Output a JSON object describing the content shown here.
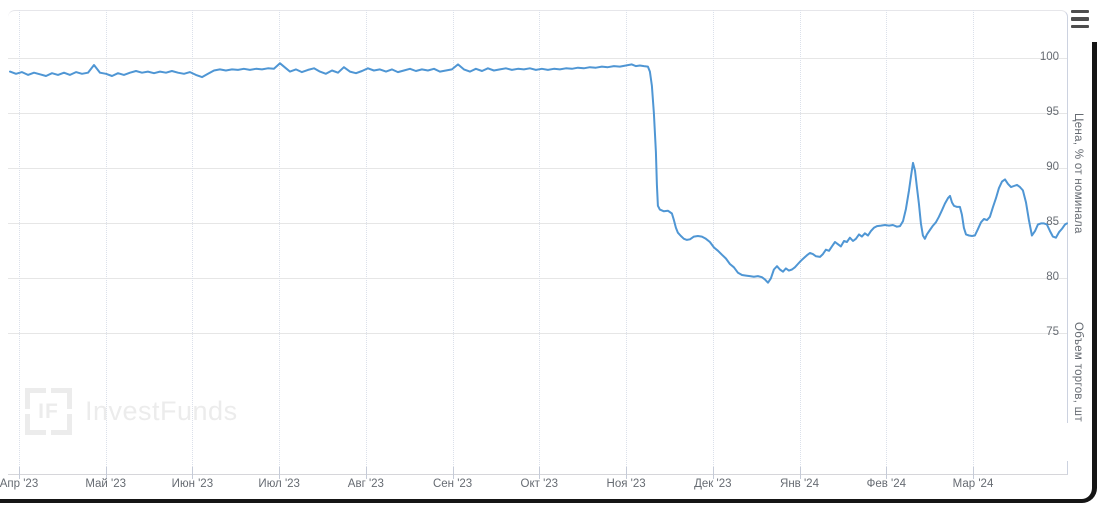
{
  "watermark": {
    "logo_text": "IF",
    "brand": "InvestFunds"
  },
  "colors": {
    "line": "#4f96d4",
    "grid": "#e6e6e6",
    "vgrid": "#dbe0ea",
    "axisline": "#c5cbd8",
    "text": "#666b72",
    "menu": "#4d4d4d",
    "watermark": "#ececec",
    "frame": "#151515"
  },
  "chart_data": {
    "type": "line",
    "title": "",
    "legend": "none",
    "grid": "horizontal solid, vertical dotted at month ticks",
    "x_axis": {
      "tick_labels": [
        "Апр '23",
        "Май '23",
        "Июн '23",
        "Июл '23",
        "Авг '23",
        "Сен '23",
        "Окт '23",
        "Ноя '23",
        "Дек '23",
        "Янв '24",
        "Фев '24",
        "Мар '24"
      ],
      "first_tick_frac": 0.0085,
      "tick_step_frac": 0.08205
    },
    "y_axis": {
      "title": "Цена, % от номинала",
      "side": "right",
      "ticks": [
        100,
        95,
        90,
        85,
        80,
        75
      ],
      "ylim": [
        62.3,
        104.4
      ]
    },
    "y2_axis": {
      "title": "Объем торгов, шт",
      "side": "right",
      "ticks": []
    },
    "series": [
      {
        "name": "Цена, % от номинала",
        "color": "#4f96d4",
        "points": [
          [
            0.0,
            98.8
          ],
          [
            0.0057,
            98.6
          ],
          [
            0.0114,
            98.75
          ],
          [
            0.017,
            98.5
          ],
          [
            0.0227,
            98.7
          ],
          [
            0.0284,
            98.55
          ],
          [
            0.0341,
            98.4
          ],
          [
            0.0397,
            98.65
          ],
          [
            0.0454,
            98.5
          ],
          [
            0.0511,
            98.7
          ],
          [
            0.0568,
            98.5
          ],
          [
            0.0624,
            98.75
          ],
          [
            0.0681,
            98.6
          ],
          [
            0.0738,
            98.7
          ],
          [
            0.0795,
            99.4
          ],
          [
            0.0851,
            98.7
          ],
          [
            0.0908,
            98.6
          ],
          [
            0.0965,
            98.4
          ],
          [
            0.1022,
            98.65
          ],
          [
            0.1078,
            98.5
          ],
          [
            0.1135,
            98.7
          ],
          [
            0.1192,
            98.85
          ],
          [
            0.1249,
            98.7
          ],
          [
            0.1305,
            98.8
          ],
          [
            0.1362,
            98.65
          ],
          [
            0.1419,
            98.8
          ],
          [
            0.1476,
            98.7
          ],
          [
            0.1532,
            98.85
          ],
          [
            0.1589,
            98.7
          ],
          [
            0.1646,
            98.6
          ],
          [
            0.1703,
            98.75
          ],
          [
            0.1759,
            98.5
          ],
          [
            0.1816,
            98.3
          ],
          [
            0.1873,
            98.6
          ],
          [
            0.193,
            98.9
          ],
          [
            0.1986,
            99.0
          ],
          [
            0.2043,
            98.9
          ],
          [
            0.21,
            99.0
          ],
          [
            0.2157,
            98.95
          ],
          [
            0.2213,
            99.05
          ],
          [
            0.227,
            98.95
          ],
          [
            0.2327,
            99.05
          ],
          [
            0.2384,
            99.0
          ],
          [
            0.244,
            99.1
          ],
          [
            0.2497,
            99.05
          ],
          [
            0.2554,
            99.55
          ],
          [
            0.2611,
            99.1
          ],
          [
            0.2649,
            98.8
          ],
          [
            0.2705,
            99.0
          ],
          [
            0.2762,
            98.75
          ],
          [
            0.2819,
            98.95
          ],
          [
            0.2876,
            99.1
          ],
          [
            0.2932,
            98.8
          ],
          [
            0.2989,
            98.6
          ],
          [
            0.3046,
            98.9
          ],
          [
            0.3103,
            98.7
          ],
          [
            0.3159,
            99.2
          ],
          [
            0.3216,
            98.8
          ],
          [
            0.3273,
            98.65
          ],
          [
            0.333,
            98.85
          ],
          [
            0.3386,
            99.1
          ],
          [
            0.3443,
            98.9
          ],
          [
            0.35,
            99.0
          ],
          [
            0.3557,
            98.8
          ],
          [
            0.3613,
            99.0
          ],
          [
            0.367,
            98.75
          ],
          [
            0.3727,
            98.9
          ],
          [
            0.3784,
            99.05
          ],
          [
            0.384,
            98.85
          ],
          [
            0.3897,
            99.0
          ],
          [
            0.3954,
            98.9
          ],
          [
            0.4011,
            99.05
          ],
          [
            0.4067,
            98.8
          ],
          [
            0.4124,
            98.9
          ],
          [
            0.4181,
            99.0
          ],
          [
            0.4238,
            99.45
          ],
          [
            0.4294,
            99.0
          ],
          [
            0.4351,
            98.8
          ],
          [
            0.4408,
            99.05
          ],
          [
            0.4465,
            98.85
          ],
          [
            0.4521,
            99.1
          ],
          [
            0.4578,
            98.9
          ],
          [
            0.4635,
            99.0
          ],
          [
            0.4692,
            99.1
          ],
          [
            0.4748,
            98.95
          ],
          [
            0.4805,
            99.05
          ],
          [
            0.4862,
            99.0
          ],
          [
            0.4919,
            99.1
          ],
          [
            0.4975,
            98.95
          ],
          [
            0.5032,
            99.05
          ],
          [
            0.5089,
            98.95
          ],
          [
            0.5146,
            99.05
          ],
          [
            0.5202,
            99.0
          ],
          [
            0.5259,
            99.1
          ],
          [
            0.5316,
            99.05
          ],
          [
            0.5373,
            99.15
          ],
          [
            0.5429,
            99.1
          ],
          [
            0.5486,
            99.2
          ],
          [
            0.5543,
            99.15
          ],
          [
            0.56,
            99.25
          ],
          [
            0.5656,
            99.2
          ],
          [
            0.5713,
            99.3
          ],
          [
            0.577,
            99.25
          ],
          [
            0.5827,
            99.35
          ],
          [
            0.5883,
            99.45
          ],
          [
            0.5921,
            99.3
          ],
          [
            0.5959,
            99.35
          ],
          [
            0.5997,
            99.3
          ],
          [
            0.6035,
            99.25
          ],
          [
            0.6054,
            98.8
          ],
          [
            0.6073,
            97.5
          ],
          [
            0.6092,
            95.0
          ],
          [
            0.6111,
            91.5
          ],
          [
            0.612,
            88.5
          ],
          [
            0.613,
            86.6
          ],
          [
            0.6149,
            86.25
          ],
          [
            0.6186,
            86.1
          ],
          [
            0.6224,
            86.15
          ],
          [
            0.6262,
            85.9
          ],
          [
            0.6281,
            85.3
          ],
          [
            0.63,
            84.6
          ],
          [
            0.6319,
            84.15
          ],
          [
            0.6347,
            83.85
          ],
          [
            0.6376,
            83.6
          ],
          [
            0.6404,
            83.5
          ],
          [
            0.6433,
            83.55
          ],
          [
            0.647,
            83.8
          ],
          [
            0.6508,
            83.85
          ],
          [
            0.6546,
            83.8
          ],
          [
            0.6584,
            83.6
          ],
          [
            0.6622,
            83.3
          ],
          [
            0.666,
            82.8
          ],
          [
            0.6698,
            82.5
          ],
          [
            0.6735,
            82.15
          ],
          [
            0.6773,
            81.8
          ],
          [
            0.6811,
            81.3
          ],
          [
            0.6849,
            81.0
          ],
          [
            0.6887,
            80.5
          ],
          [
            0.6925,
            80.3
          ],
          [
            0.6963,
            80.25
          ],
          [
            0.7,
            80.2
          ],
          [
            0.7038,
            80.15
          ],
          [
            0.7076,
            80.2
          ],
          [
            0.7114,
            80.1
          ],
          [
            0.7142,
            79.9
          ],
          [
            0.7171,
            79.6
          ],
          [
            0.7199,
            80.0
          ],
          [
            0.7227,
            80.8
          ],
          [
            0.7256,
            81.1
          ],
          [
            0.7284,
            80.8
          ],
          [
            0.7313,
            80.6
          ],
          [
            0.7341,
            80.9
          ],
          [
            0.7369,
            80.7
          ],
          [
            0.7398,
            80.8
          ],
          [
            0.7426,
            81.0
          ],
          [
            0.7454,
            81.3
          ],
          [
            0.7483,
            81.6
          ],
          [
            0.7511,
            81.85
          ],
          [
            0.754,
            82.1
          ],
          [
            0.7568,
            82.3
          ],
          [
            0.7596,
            82.2
          ],
          [
            0.7625,
            82.0
          ],
          [
            0.7663,
            81.95
          ],
          [
            0.7691,
            82.2
          ],
          [
            0.7719,
            82.6
          ],
          [
            0.7748,
            82.5
          ],
          [
            0.7776,
            82.9
          ],
          [
            0.7805,
            83.3
          ],
          [
            0.7833,
            83.1
          ],
          [
            0.7861,
            82.9
          ],
          [
            0.789,
            83.4
          ],
          [
            0.7918,
            83.3
          ],
          [
            0.7946,
            83.7
          ],
          [
            0.7975,
            83.4
          ],
          [
            0.8003,
            83.6
          ],
          [
            0.8032,
            84.0
          ],
          [
            0.806,
            83.8
          ],
          [
            0.8088,
            84.1
          ],
          [
            0.8117,
            83.9
          ],
          [
            0.8145,
            84.3
          ],
          [
            0.8173,
            84.6
          ],
          [
            0.8202,
            84.75
          ],
          [
            0.824,
            84.8
          ],
          [
            0.8278,
            84.85
          ],
          [
            0.8316,
            84.8
          ],
          [
            0.8353,
            84.85
          ],
          [
            0.8391,
            84.7
          ],
          [
            0.842,
            84.75
          ],
          [
            0.8448,
            85.2
          ],
          [
            0.8476,
            86.3
          ],
          [
            0.8505,
            88.0
          ],
          [
            0.8524,
            89.3
          ],
          [
            0.8543,
            90.5
          ],
          [
            0.8562,
            89.8
          ],
          [
            0.858,
            88.3
          ],
          [
            0.8599,
            86.8
          ],
          [
            0.8618,
            85.0
          ],
          [
            0.8637,
            83.9
          ],
          [
            0.8656,
            83.6
          ],
          [
            0.8675,
            84.0
          ],
          [
            0.8703,
            84.4
          ],
          [
            0.8732,
            84.8
          ],
          [
            0.876,
            85.1
          ],
          [
            0.8788,
            85.6
          ],
          [
            0.8817,
            86.2
          ],
          [
            0.8845,
            86.8
          ],
          [
            0.8874,
            87.3
          ],
          [
            0.8893,
            87.5
          ],
          [
            0.8912,
            86.9
          ],
          [
            0.8931,
            86.6
          ],
          [
            0.8959,
            86.5
          ],
          [
            0.8987,
            86.5
          ],
          [
            0.9006,
            85.8
          ],
          [
            0.9025,
            84.6
          ],
          [
            0.9044,
            84.0
          ],
          [
            0.9073,
            83.9
          ],
          [
            0.9101,
            83.85
          ],
          [
            0.9129,
            83.9
          ],
          [
            0.9158,
            84.5
          ],
          [
            0.9186,
            85.1
          ],
          [
            0.9214,
            85.4
          ],
          [
            0.9243,
            85.3
          ],
          [
            0.9271,
            85.6
          ],
          [
            0.93,
            86.5
          ],
          [
            0.9328,
            87.3
          ],
          [
            0.9356,
            88.2
          ],
          [
            0.9385,
            88.8
          ],
          [
            0.9413,
            89.0
          ],
          [
            0.9441,
            88.6
          ],
          [
            0.947,
            88.3
          ],
          [
            0.9498,
            88.4
          ],
          [
            0.9527,
            88.5
          ],
          [
            0.9555,
            88.3
          ],
          [
            0.9583,
            88.0
          ],
          [
            0.9612,
            86.9
          ],
          [
            0.964,
            85.3
          ],
          [
            0.9668,
            83.9
          ],
          [
            0.9697,
            84.3
          ],
          [
            0.9725,
            84.9
          ],
          [
            0.9754,
            85.0
          ],
          [
            0.9782,
            85.0
          ],
          [
            0.981,
            84.9
          ],
          [
            0.9839,
            84.3
          ],
          [
            0.9867,
            83.8
          ],
          [
            0.9895,
            83.7
          ],
          [
            0.9924,
            84.2
          ],
          [
            0.9952,
            84.5
          ],
          [
            0.9981,
            84.9
          ],
          [
            1.0,
            85.0
          ]
        ]
      }
    ]
  }
}
